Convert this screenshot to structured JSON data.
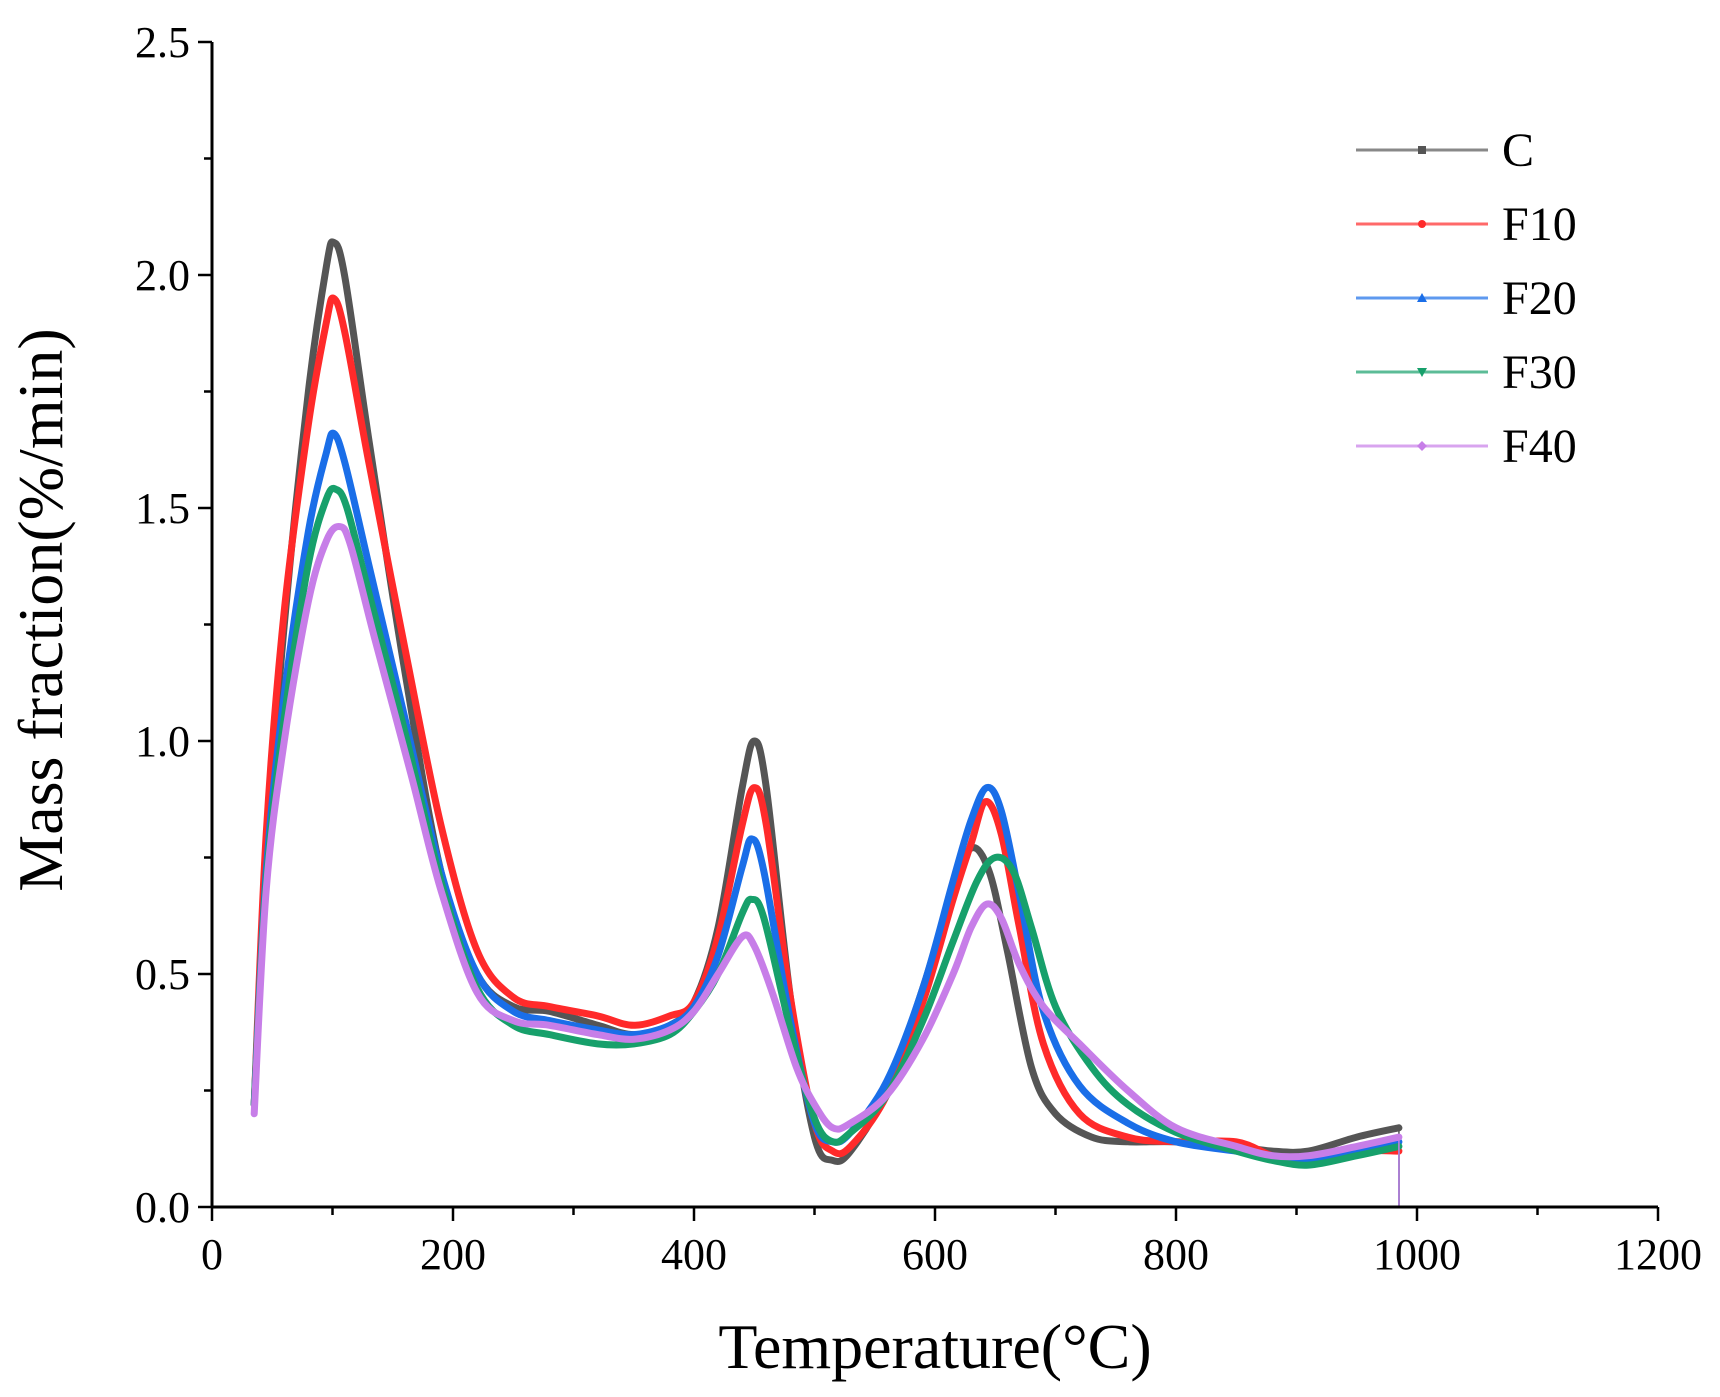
{
  "chart_data": {
    "type": "line",
    "title": "",
    "xlabel": "Temperature(°C)",
    "ylabel": "Mass fraction(%/min)",
    "xlim": [
      0,
      1200
    ],
    "ylim": [
      0,
      2.5
    ],
    "xticks": [
      "0",
      "200",
      "400",
      "600",
      "800",
      "1000",
      "1200"
    ],
    "yticks": [
      "0.0",
      "0.5",
      "1.0",
      "1.5",
      "2.0",
      "2.5"
    ],
    "legend_position": "top-right",
    "series": [
      {
        "name": "C",
        "color": "#555555",
        "marker": "square",
        "points": [
          [
            35,
            0.22
          ],
          [
            45,
            0.75
          ],
          [
            60,
            1.25
          ],
          [
            80,
            1.75
          ],
          [
            95,
            2.02
          ],
          [
            101,
            2.07
          ],
          [
            110,
            2.0
          ],
          [
            130,
            1.65
          ],
          [
            160,
            1.15
          ],
          [
            190,
            0.72
          ],
          [
            220,
            0.5
          ],
          [
            250,
            0.43
          ],
          [
            280,
            0.42
          ],
          [
            320,
            0.39
          ],
          [
            350,
            0.37
          ],
          [
            380,
            0.39
          ],
          [
            400,
            0.44
          ],
          [
            420,
            0.6
          ],
          [
            440,
            0.9
          ],
          [
            450,
            1.0
          ],
          [
            460,
            0.9
          ],
          [
            480,
            0.45
          ],
          [
            500,
            0.15
          ],
          [
            515,
            0.1
          ],
          [
            530,
            0.12
          ],
          [
            560,
            0.25
          ],
          [
            590,
            0.47
          ],
          [
            615,
            0.68
          ],
          [
            630,
            0.77
          ],
          [
            645,
            0.72
          ],
          [
            660,
            0.55
          ],
          [
            680,
            0.3
          ],
          [
            700,
            0.2
          ],
          [
            730,
            0.15
          ],
          [
            760,
            0.14
          ],
          [
            800,
            0.14
          ],
          [
            850,
            0.13
          ],
          [
            880,
            0.12
          ],
          [
            910,
            0.12
          ],
          [
            950,
            0.15
          ],
          [
            985,
            0.17
          ]
        ]
      },
      {
        "name": "F10",
        "color": "#ff2a2a",
        "marker": "circle",
        "points": [
          [
            35,
            0.22
          ],
          [
            45,
            0.8
          ],
          [
            60,
            1.28
          ],
          [
            80,
            1.68
          ],
          [
            95,
            1.9
          ],
          [
            101,
            1.95
          ],
          [
            110,
            1.88
          ],
          [
            130,
            1.6
          ],
          [
            160,
            1.2
          ],
          [
            190,
            0.82
          ],
          [
            220,
            0.55
          ],
          [
            250,
            0.45
          ],
          [
            280,
            0.43
          ],
          [
            320,
            0.41
          ],
          [
            350,
            0.39
          ],
          [
            380,
            0.41
          ],
          [
            400,
            0.44
          ],
          [
            420,
            0.58
          ],
          [
            440,
            0.82
          ],
          [
            450,
            0.9
          ],
          [
            460,
            0.82
          ],
          [
            480,
            0.45
          ],
          [
            500,
            0.18
          ],
          [
            515,
            0.12
          ],
          [
            530,
            0.13
          ],
          [
            560,
            0.24
          ],
          [
            590,
            0.44
          ],
          [
            615,
            0.66
          ],
          [
            630,
            0.78
          ],
          [
            642,
            0.87
          ],
          [
            655,
            0.8
          ],
          [
            670,
            0.6
          ],
          [
            690,
            0.35
          ],
          [
            720,
            0.2
          ],
          [
            760,
            0.15
          ],
          [
            800,
            0.14
          ],
          [
            850,
            0.14
          ],
          [
            880,
            0.11
          ],
          [
            910,
            0.1
          ],
          [
            950,
            0.12
          ],
          [
            985,
            0.12
          ]
        ]
      },
      {
        "name": "F20",
        "color": "#1a6ee8",
        "marker": "triangle-up",
        "points": [
          [
            35,
            0.22
          ],
          [
            45,
            0.72
          ],
          [
            60,
            1.1
          ],
          [
            80,
            1.45
          ],
          [
            95,
            1.62
          ],
          [
            101,
            1.66
          ],
          [
            110,
            1.6
          ],
          [
            130,
            1.38
          ],
          [
            160,
            1.05
          ],
          [
            190,
            0.72
          ],
          [
            220,
            0.5
          ],
          [
            250,
            0.42
          ],
          [
            280,
            0.4
          ],
          [
            320,
            0.38
          ],
          [
            350,
            0.37
          ],
          [
            380,
            0.39
          ],
          [
            400,
            0.43
          ],
          [
            420,
            0.54
          ],
          [
            440,
            0.73
          ],
          [
            448,
            0.79
          ],
          [
            458,
            0.72
          ],
          [
            480,
            0.4
          ],
          [
            500,
            0.18
          ],
          [
            515,
            0.14
          ],
          [
            530,
            0.16
          ],
          [
            560,
            0.27
          ],
          [
            590,
            0.47
          ],
          [
            615,
            0.7
          ],
          [
            630,
            0.83
          ],
          [
            643,
            0.9
          ],
          [
            655,
            0.85
          ],
          [
            670,
            0.67
          ],
          [
            690,
            0.42
          ],
          [
            720,
            0.26
          ],
          [
            760,
            0.18
          ],
          [
            800,
            0.14
          ],
          [
            850,
            0.12
          ],
          [
            880,
            0.11
          ],
          [
            910,
            0.1
          ],
          [
            950,
            0.12
          ],
          [
            985,
            0.14
          ]
        ]
      },
      {
        "name": "F30",
        "color": "#17a06b",
        "marker": "triangle-down",
        "points": [
          [
            35,
            0.22
          ],
          [
            45,
            0.7
          ],
          [
            60,
            1.05
          ],
          [
            80,
            1.38
          ],
          [
            95,
            1.52
          ],
          [
            103,
            1.54
          ],
          [
            112,
            1.5
          ],
          [
            130,
            1.32
          ],
          [
            160,
            1.02
          ],
          [
            190,
            0.7
          ],
          [
            220,
            0.47
          ],
          [
            250,
            0.39
          ],
          [
            280,
            0.37
          ],
          [
            320,
            0.35
          ],
          [
            350,
            0.35
          ],
          [
            380,
            0.37
          ],
          [
            400,
            0.42
          ],
          [
            420,
            0.5
          ],
          [
            440,
            0.63
          ],
          [
            448,
            0.66
          ],
          [
            458,
            0.62
          ],
          [
            480,
            0.38
          ],
          [
            500,
            0.19
          ],
          [
            515,
            0.14
          ],
          [
            530,
            0.16
          ],
          [
            560,
            0.24
          ],
          [
            590,
            0.4
          ],
          [
            615,
            0.57
          ],
          [
            635,
            0.7
          ],
          [
            650,
            0.75
          ],
          [
            665,
            0.72
          ],
          [
            680,
            0.6
          ],
          [
            700,
            0.43
          ],
          [
            730,
            0.3
          ],
          [
            760,
            0.22
          ],
          [
            800,
            0.16
          ],
          [
            850,
            0.12
          ],
          [
            880,
            0.1
          ],
          [
            910,
            0.09
          ],
          [
            950,
            0.11
          ],
          [
            985,
            0.13
          ]
        ]
      },
      {
        "name": "F40",
        "color": "#c77ee8",
        "marker": "diamond",
        "points": [
          [
            35,
            0.2
          ],
          [
            45,
            0.68
          ],
          [
            60,
            1.0
          ],
          [
            80,
            1.3
          ],
          [
            95,
            1.43
          ],
          [
            106,
            1.46
          ],
          [
            115,
            1.42
          ],
          [
            135,
            1.22
          ],
          [
            165,
            0.93
          ],
          [
            190,
            0.68
          ],
          [
            220,
            0.46
          ],
          [
            250,
            0.4
          ],
          [
            280,
            0.39
          ],
          [
            320,
            0.37
          ],
          [
            350,
            0.36
          ],
          [
            380,
            0.38
          ],
          [
            400,
            0.42
          ],
          [
            420,
            0.5
          ],
          [
            440,
            0.58
          ],
          [
            450,
            0.56
          ],
          [
            465,
            0.46
          ],
          [
            485,
            0.3
          ],
          [
            500,
            0.22
          ],
          [
            515,
            0.17
          ],
          [
            530,
            0.18
          ],
          [
            560,
            0.24
          ],
          [
            590,
            0.36
          ],
          [
            615,
            0.5
          ],
          [
            630,
            0.6
          ],
          [
            643,
            0.65
          ],
          [
            655,
            0.62
          ],
          [
            670,
            0.52
          ],
          [
            690,
            0.43
          ],
          [
            720,
            0.35
          ],
          [
            760,
            0.25
          ],
          [
            800,
            0.17
          ],
          [
            850,
            0.13
          ],
          [
            880,
            0.11
          ],
          [
            910,
            0.11
          ],
          [
            950,
            0.13
          ],
          [
            985,
            0.15
          ]
        ]
      }
    ]
  }
}
